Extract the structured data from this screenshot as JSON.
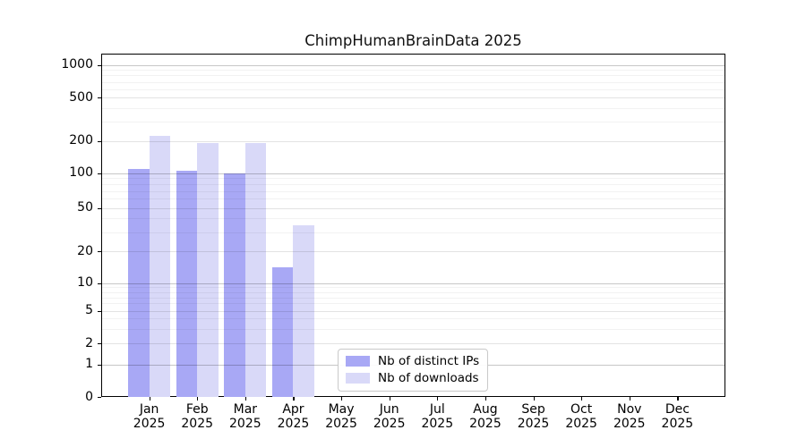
{
  "title": "ChimpHumanBrainData 2025",
  "colors": {
    "ips_bar": "#a8a8f5",
    "downloads_bar": "#d9d9f8",
    "spine": "#000000",
    "grid_major": "#c6c6c6",
    "grid_mid": "#e3e3e3",
    "grid_minor": "#f2f2f2"
  },
  "legend": {
    "position": "lower center"
  },
  "chart_data": {
    "type": "bar",
    "title": "ChimpHumanBrainData 2025",
    "xlabel": "",
    "ylabel": "",
    "scale": "symlog",
    "grid": true,
    "ylim": [
      0,
      1270
    ],
    "categories": [
      "Jan 2025",
      "Feb 2025",
      "Mar 2025",
      "Apr 2025",
      "May 2025",
      "Jun 2025",
      "Jul 2025",
      "Aug 2025",
      "Sep 2025",
      "Oct 2025",
      "Nov 2025",
      "Dec 2025"
    ],
    "yticks": [
      0,
      1,
      2,
      5,
      10,
      20,
      50,
      100,
      200,
      500,
      1000
    ],
    "minor_gridlines": [
      3,
      4,
      6,
      7,
      8,
      9,
      30,
      40,
      60,
      70,
      80,
      90,
      300,
      400,
      600,
      700,
      800,
      900
    ],
    "series": [
      {
        "name": "Nb of distinct IPs",
        "color": "#a8a8f5",
        "values": [
          110,
          105,
          100,
          14,
          0,
          0,
          0,
          0,
          0,
          0,
          0,
          0
        ]
      },
      {
        "name": "Nb of downloads",
        "color": "#d9d9f8",
        "values": [
          220,
          190,
          190,
          35,
          0,
          0,
          0,
          0,
          0,
          0,
          0,
          0
        ]
      }
    ],
    "legend_position": "lower center"
  }
}
